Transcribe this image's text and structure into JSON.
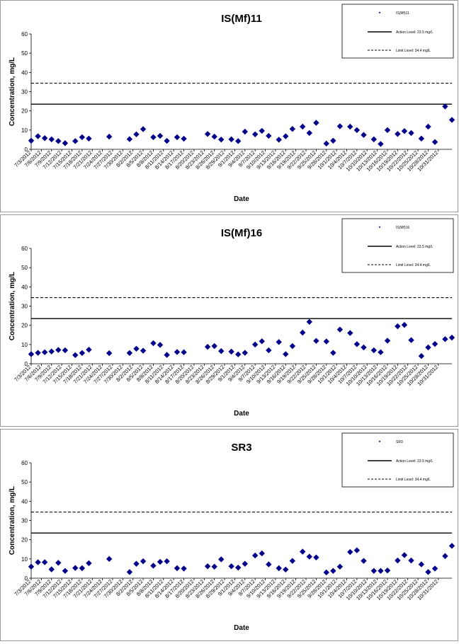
{
  "chart_data": [
    {
      "type": "scatter",
      "title": "IS(Mf)11",
      "xlabel": "Date",
      "ylabel": "Concentration, mg/L",
      "ylim": [
        0,
        60
      ],
      "yticks": [
        0,
        10,
        20,
        30,
        40,
        50,
        60
      ],
      "grid": false,
      "legend_position": "top-right",
      "x_ticks": [
        "7/3/2012",
        "7/6/2012",
        "7/9/2012",
        "7/12/2012",
        "7/15/2012",
        "7/18/2012",
        "7/21/2012",
        "7/24/2012",
        "7/27/2012",
        "7/30/2012",
        "8/2/2012",
        "8/5/2012",
        "8/8/2012",
        "8/11/2012",
        "8/14/2012",
        "8/17/2012",
        "8/20/2012",
        "8/23/2012",
        "8/26/2012",
        "8/29/2012",
        "9/1/2012",
        "9/4/2012",
        "9/7/2012",
        "9/10/2012",
        "9/13/2012",
        "9/16/2012",
        "9/19/2012",
        "9/22/2012",
        "9/25/2012",
        "9/28/2012",
        "10/1/2012",
        "10/4/2012",
        "10/7/2012",
        "10/10/2012",
        "10/13/2012",
        "10/16/2012",
        "10/19/2012",
        "10/22/2012",
        "10/25/2012",
        "10/28/2012",
        "10/31/2012"
      ],
      "legend": {
        "series_label": "IS(Mf)11",
        "action_label": "Action Level: 23.5 mg/L",
        "limit_label": "Limit Level: 34.4 mg/L"
      },
      "action_level": 23.5,
      "limit_level": 34.4,
      "points": [
        {
          "x": "7/3/2012",
          "y": 4.5
        },
        {
          "x": "7/5/2012",
          "y": 6.8
        },
        {
          "x": "7/7/2012",
          "y": 5.8
        },
        {
          "x": "7/9/2012",
          "y": 5.2
        },
        {
          "x": "7/11/2012",
          "y": 4.3
        },
        {
          "x": "7/13/2012",
          "y": 3.2
        },
        {
          "x": "7/16/2012",
          "y": 4.3
        },
        {
          "x": "7/18/2012",
          "y": 6.3
        },
        {
          "x": "7/20/2012",
          "y": 5.6
        },
        {
          "x": "7/26/2012",
          "y": 6.6
        },
        {
          "x": "8/1/2012",
          "y": 5.3
        },
        {
          "x": "8/3/2012",
          "y": 7.8
        },
        {
          "x": "8/5/2012",
          "y": 10.5
        },
        {
          "x": "8/8/2012",
          "y": 6.3
        },
        {
          "x": "8/10/2012",
          "y": 7.0
        },
        {
          "x": "8/12/2012",
          "y": 4.4
        },
        {
          "x": "8/15/2012",
          "y": 6.3
        },
        {
          "x": "8/17/2012",
          "y": 5.5
        },
        {
          "x": "8/24/2012",
          "y": 8.0
        },
        {
          "x": "8/26/2012",
          "y": 6.6
        },
        {
          "x": "8/28/2012",
          "y": 5.1
        },
        {
          "x": "8/31/2012",
          "y": 5.2
        },
        {
          "x": "9/2/2012",
          "y": 4.3
        },
        {
          "x": "9/4/2012",
          "y": 9.2
        },
        {
          "x": "9/7/2012",
          "y": 7.8
        },
        {
          "x": "9/9/2012",
          "y": 9.6
        },
        {
          "x": "9/11/2012",
          "y": 7.0
        },
        {
          "x": "9/14/2012",
          "y": 5.0
        },
        {
          "x": "9/16/2012",
          "y": 6.8
        },
        {
          "x": "9/18/2012",
          "y": 10.6
        },
        {
          "x": "9/21/2012",
          "y": 11.8
        },
        {
          "x": "9/23/2012",
          "y": 8.5
        },
        {
          "x": "9/25/2012",
          "y": 13.8
        },
        {
          "x": "9/28/2012",
          "y": 3.0
        },
        {
          "x": "9/30/2012",
          "y": 4.5
        },
        {
          "x": "10/2/2012",
          "y": 12.0
        },
        {
          "x": "10/5/2012",
          "y": 11.8
        },
        {
          "x": "10/7/2012",
          "y": 10.0
        },
        {
          "x": "10/9/2012",
          "y": 7.5
        },
        {
          "x": "10/12/2012",
          "y": 5.2
        },
        {
          "x": "10/14/2012",
          "y": 2.8
        },
        {
          "x": "10/16/2012",
          "y": 10.0
        },
        {
          "x": "10/19/2012",
          "y": 8.0
        },
        {
          "x": "10/21/2012",
          "y": 9.5
        },
        {
          "x": "10/23/2012",
          "y": 8.5
        },
        {
          "x": "10/26/2012",
          "y": 5.6
        },
        {
          "x": "10/28/2012",
          "y": 11.8
        },
        {
          "x": "10/30/2012",
          "y": 3.8
        },
        {
          "x": "11/2/2012",
          "y": 22.3
        },
        {
          "x": "11/4/2012",
          "y": 15.3
        }
      ]
    },
    {
      "type": "scatter",
      "title": "IS(Mf)16",
      "xlabel": "Date",
      "ylabel": "Concentration, mg/L",
      "ylim": [
        0,
        60
      ],
      "yticks": [
        0,
        10,
        20,
        30,
        40,
        50,
        60
      ],
      "grid": false,
      "legend_position": "top-right",
      "x_ticks": [
        "7/3/2012",
        "7/6/2012",
        "7/9/2012",
        "7/12/2012",
        "7/15/2012",
        "7/18/2012",
        "7/21/2012",
        "7/24/2012",
        "7/27/2012",
        "7/30/2012",
        "8/2/2012",
        "8/5/2012",
        "8/8/2012",
        "8/11/2012",
        "8/14/2012",
        "8/17/2012",
        "8/20/2012",
        "8/23/2012",
        "8/26/2012",
        "8/29/2012",
        "9/1/2012",
        "9/4/2012",
        "9/7/2012",
        "9/10/2012",
        "9/13/2012",
        "9/16/2012",
        "9/19/2012",
        "9/22/2012",
        "9/25/2012",
        "9/28/2012",
        "10/1/2012",
        "10/4/2012",
        "10/7/2012",
        "10/10/2012",
        "10/13/2012",
        "10/16/2012",
        "10/19/2012",
        "10/22/2012",
        "10/25/2012",
        "10/28/2012",
        "10/31/2012"
      ],
      "legend": {
        "series_label": "IS(Mf)16",
        "action_label": "Action Level: 23.5 mg/L",
        "limit_label": "Limit Level: 34.4 mg/L"
      },
      "action_level": 23.5,
      "limit_level": 34.4,
      "points": [
        {
          "x": "7/3/2012",
          "y": 5.0
        },
        {
          "x": "7/5/2012",
          "y": 5.7
        },
        {
          "x": "7/7/2012",
          "y": 6.0
        },
        {
          "x": "7/9/2012",
          "y": 6.4
        },
        {
          "x": "7/11/2012",
          "y": 7.2
        },
        {
          "x": "7/13/2012",
          "y": 7.0
        },
        {
          "x": "7/16/2012",
          "y": 4.5
        },
        {
          "x": "7/18/2012",
          "y": 5.6
        },
        {
          "x": "7/20/2012",
          "y": 7.3
        },
        {
          "x": "7/26/2012",
          "y": 5.5
        },
        {
          "x": "8/1/2012",
          "y": 5.6
        },
        {
          "x": "8/3/2012",
          "y": 7.8
        },
        {
          "x": "8/5/2012",
          "y": 6.8
        },
        {
          "x": "8/8/2012",
          "y": 10.7
        },
        {
          "x": "8/10/2012",
          "y": 9.8
        },
        {
          "x": "8/12/2012",
          "y": 4.6
        },
        {
          "x": "8/15/2012",
          "y": 6.1
        },
        {
          "x": "8/17/2012",
          "y": 6.0
        },
        {
          "x": "8/24/2012",
          "y": 8.8
        },
        {
          "x": "8/26/2012",
          "y": 9.2
        },
        {
          "x": "8/28/2012",
          "y": 6.6
        },
        {
          "x": "8/31/2012",
          "y": 6.3
        },
        {
          "x": "9/2/2012",
          "y": 4.9
        },
        {
          "x": "9/4/2012",
          "y": 5.7
        },
        {
          "x": "9/7/2012",
          "y": 10.0
        },
        {
          "x": "9/9/2012",
          "y": 11.7
        },
        {
          "x": "9/11/2012",
          "y": 7.0
        },
        {
          "x": "9/14/2012",
          "y": 11.3
        },
        {
          "x": "9/16/2012",
          "y": 5.0
        },
        {
          "x": "9/18/2012",
          "y": 9.2
        },
        {
          "x": "9/21/2012",
          "y": 16.2
        },
        {
          "x": "9/23/2012",
          "y": 21.8
        },
        {
          "x": "9/25/2012",
          "y": 11.9
        },
        {
          "x": "9/28/2012",
          "y": 11.6
        },
        {
          "x": "9/30/2012",
          "y": 5.7
        },
        {
          "x": "10/2/2012",
          "y": 17.8
        },
        {
          "x": "10/5/2012",
          "y": 16.0
        },
        {
          "x": "10/7/2012",
          "y": 10.2
        },
        {
          "x": "10/9/2012",
          "y": 8.5
        },
        {
          "x": "10/12/2012",
          "y": 7.0
        },
        {
          "x": "10/14/2012",
          "y": 6.0
        },
        {
          "x": "10/16/2012",
          "y": 12.0
        },
        {
          "x": "10/19/2012",
          "y": 19.5
        },
        {
          "x": "10/21/2012",
          "y": 20.2
        },
        {
          "x": "10/23/2012",
          "y": 12.3
        },
        {
          "x": "10/26/2012",
          "y": 4.0
        },
        {
          "x": "10/28/2012",
          "y": 8.5
        },
        {
          "x": "10/30/2012",
          "y": 10.3
        },
        {
          "x": "11/2/2012",
          "y": 12.8
        },
        {
          "x": "11/4/2012",
          "y": 13.6
        }
      ]
    },
    {
      "type": "scatter",
      "title": "SR3",
      "xlabel": "Date",
      "ylabel": "Concentration, mg/L",
      "ylim": [
        0,
        60
      ],
      "yticks": [
        0,
        10,
        20,
        30,
        40,
        50,
        60
      ],
      "grid": false,
      "legend_position": "top-right",
      "x_ticks": [
        "7/3/2012",
        "7/6/2012",
        "7/9/2012",
        "7/12/2012",
        "7/15/2012",
        "7/18/2012",
        "7/21/2012",
        "7/24/2012",
        "7/27/2012",
        "7/30/2012",
        "8/2/2012",
        "8/5/2012",
        "8/8/2012",
        "8/11/2012",
        "8/14/2012",
        "8/17/2012",
        "8/20/2012",
        "8/23/2012",
        "8/26/2012",
        "8/29/2012",
        "9/1/2012",
        "9/4/2012",
        "9/7/2012",
        "9/10/2012",
        "9/13/2012",
        "9/16/2012",
        "9/19/2012",
        "9/22/2012",
        "9/25/2012",
        "9/28/2012",
        "10/1/2012",
        "10/4/2012",
        "10/7/2012",
        "10/10/2012",
        "10/13/2012",
        "10/16/2012",
        "10/19/2012",
        "10/22/2012",
        "10/25/2012",
        "10/28/2012",
        "10/31/2012"
      ],
      "legend": {
        "series_label": "SR3",
        "action_label": "Action Level: 23.5 mg/L",
        "limit_label": "Limit Level: 34.4 mg/L"
      },
      "action_level": 23.5,
      "limit_level": 34.4,
      "points": [
        {
          "x": "7/3/2012",
          "y": 6.0
        },
        {
          "x": "7/5/2012",
          "y": 8.3
        },
        {
          "x": "7/7/2012",
          "y": 8.3
        },
        {
          "x": "7/9/2012",
          "y": 4.6
        },
        {
          "x": "7/11/2012",
          "y": 8.0
        },
        {
          "x": "7/13/2012",
          "y": 3.8
        },
        {
          "x": "7/16/2012",
          "y": 5.3
        },
        {
          "x": "7/18/2012",
          "y": 5.2
        },
        {
          "x": "7/20/2012",
          "y": 7.8
        },
        {
          "x": "7/26/2012",
          "y": 10.0
        },
        {
          "x": "8/1/2012",
          "y": 3.2
        },
        {
          "x": "8/3/2012",
          "y": 7.5
        },
        {
          "x": "8/5/2012",
          "y": 8.8
        },
        {
          "x": "8/8/2012",
          "y": 6.5
        },
        {
          "x": "8/10/2012",
          "y": 8.5
        },
        {
          "x": "8/12/2012",
          "y": 8.8
        },
        {
          "x": "8/15/2012",
          "y": 5.2
        },
        {
          "x": "8/17/2012",
          "y": 5.0
        },
        {
          "x": "8/24/2012",
          "y": 6.2
        },
        {
          "x": "8/26/2012",
          "y": 6.0
        },
        {
          "x": "8/28/2012",
          "y": 9.8
        },
        {
          "x": "8/31/2012",
          "y": 6.2
        },
        {
          "x": "9/2/2012",
          "y": 5.5
        },
        {
          "x": "9/4/2012",
          "y": 7.5
        },
        {
          "x": "9/7/2012",
          "y": 11.8
        },
        {
          "x": "9/9/2012",
          "y": 12.9
        },
        {
          "x": "9/11/2012",
          "y": 7.2
        },
        {
          "x": "9/14/2012",
          "y": 5.2
        },
        {
          "x": "9/16/2012",
          "y": 4.5
        },
        {
          "x": "9/18/2012",
          "y": 9.0
        },
        {
          "x": "9/21/2012",
          "y": 13.8
        },
        {
          "x": "9/23/2012",
          "y": 11.2
        },
        {
          "x": "9/25/2012",
          "y": 10.8
        },
        {
          "x": "9/28/2012",
          "y": 3.0
        },
        {
          "x": "9/30/2012",
          "y": 3.8
        },
        {
          "x": "10/2/2012",
          "y": 6.0
        },
        {
          "x": "10/5/2012",
          "y": 13.6
        },
        {
          "x": "10/7/2012",
          "y": 14.5
        },
        {
          "x": "10/9/2012",
          "y": 9.0
        },
        {
          "x": "10/12/2012",
          "y": 3.8
        },
        {
          "x": "10/14/2012",
          "y": 3.8
        },
        {
          "x": "10/16/2012",
          "y": 4.0
        },
        {
          "x": "10/19/2012",
          "y": 9.2
        },
        {
          "x": "10/21/2012",
          "y": 12.0
        },
        {
          "x": "10/23/2012",
          "y": 9.2
        },
        {
          "x": "10/26/2012",
          "y": 7.2
        },
        {
          "x": "10/28/2012",
          "y": 3.2
        },
        {
          "x": "10/30/2012",
          "y": 5.0
        },
        {
          "x": "11/2/2012",
          "y": 11.5
        },
        {
          "x": "11/4/2012",
          "y": 16.8
        }
      ]
    }
  ]
}
